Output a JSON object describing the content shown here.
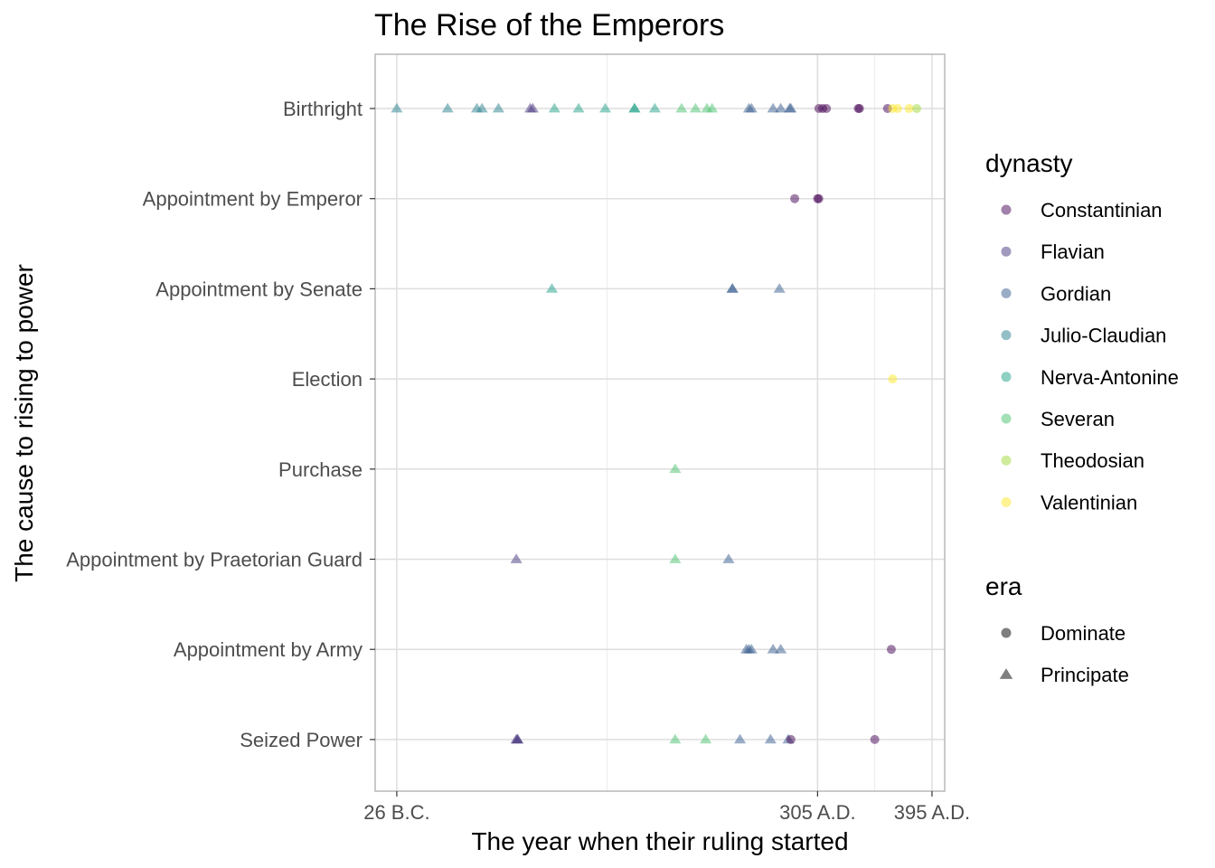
{
  "chart_data": {
    "type": "scatter",
    "title": "The Rise of the Emperors",
    "xlabel": "The year when their ruling started",
    "ylabel": "The cause to rising to power",
    "xlim": [
      -43,
      405
    ],
    "x_ticks": [
      {
        "value": -26,
        "label": "26 B.C."
      },
      {
        "value": 305,
        "label": "305 A.D."
      },
      {
        "value": 395,
        "label": "395 A.D."
      }
    ],
    "categories": [
      "Birthright",
      "Appointment by Emperor",
      "Appointment by Senate",
      "Election",
      "Purchase",
      "Appointment by Praetorian Guard",
      "Appointment by Army",
      "Seized Power"
    ],
    "colors": {
      "Constantinian": "#440154",
      "Flavian": "#46337E",
      "Gordian": "#365C8D",
      "Julio-Claudian": "#277F8E",
      "Nerva-Antonine": "#1FA187",
      "Severan": "#4AC16D",
      "Theodosian": "#9FDA3A",
      "Valentinian": "#FDE725"
    },
    "legend_dynasty": {
      "title": "dynasty",
      "items": [
        "Constantinian",
        "Flavian",
        "Gordian",
        "Julio-Claudian",
        "Nerva-Antonine",
        "Severan",
        "Theodosian",
        "Valentinian"
      ]
    },
    "legend_era": {
      "title": "era",
      "items": [
        {
          "label": "Dominate",
          "shape": "circle"
        },
        {
          "label": "Principate",
          "shape": "triangle"
        }
      ]
    },
    "points": [
      {
        "x": -26,
        "cause": "Birthright",
        "dynasty": "Julio-Claudian",
        "era": "Principate"
      },
      {
        "x": 14,
        "cause": "Birthright",
        "dynasty": "Julio-Claudian",
        "era": "Principate"
      },
      {
        "x": 37,
        "cause": "Birthright",
        "dynasty": "Julio-Claudian",
        "era": "Principate"
      },
      {
        "x": 41,
        "cause": "Birthright",
        "dynasty": "Julio-Claudian",
        "era": "Principate"
      },
      {
        "x": 54,
        "cause": "Birthright",
        "dynasty": "Julio-Claudian",
        "era": "Principate"
      },
      {
        "x": 79,
        "cause": "Birthright",
        "dynasty": "Flavian",
        "era": "Principate"
      },
      {
        "x": 81,
        "cause": "Birthright",
        "dynasty": "Flavian",
        "era": "Principate"
      },
      {
        "x": 98,
        "cause": "Birthright",
        "dynasty": "Nerva-Antonine",
        "era": "Principate"
      },
      {
        "x": 117,
        "cause": "Birthright",
        "dynasty": "Nerva-Antonine",
        "era": "Principate"
      },
      {
        "x": 138,
        "cause": "Birthright",
        "dynasty": "Nerva-Antonine",
        "era": "Principate"
      },
      {
        "x": 161,
        "cause": "Birthright",
        "dynasty": "Nerva-Antonine",
        "era": "Principate"
      },
      {
        "x": 161,
        "cause": "Birthright",
        "dynasty": "Nerva-Antonine",
        "era": "Principate"
      },
      {
        "x": 177,
        "cause": "Birthright",
        "dynasty": "Nerva-Antonine",
        "era": "Principate"
      },
      {
        "x": 198,
        "cause": "Birthright",
        "dynasty": "Severan",
        "era": "Principate"
      },
      {
        "x": 209,
        "cause": "Birthright",
        "dynasty": "Severan",
        "era": "Principate"
      },
      {
        "x": 218,
        "cause": "Birthright",
        "dynasty": "Severan",
        "era": "Principate"
      },
      {
        "x": 222,
        "cause": "Birthright",
        "dynasty": "Severan",
        "era": "Principate"
      },
      {
        "x": 251,
        "cause": "Birthright",
        "dynasty": "Gordian",
        "era": "Principate"
      },
      {
        "x": 253,
        "cause": "Birthright",
        "dynasty": "Gordian",
        "era": "Principate"
      },
      {
        "x": 270,
        "cause": "Birthright",
        "dynasty": "Gordian",
        "era": "Principate"
      },
      {
        "x": 276,
        "cause": "Birthright",
        "dynasty": "Gordian",
        "era": "Principate"
      },
      {
        "x": 283,
        "cause": "Birthright",
        "dynasty": "Gordian",
        "era": "Principate"
      },
      {
        "x": 284,
        "cause": "Birthright",
        "dynasty": "Gordian",
        "era": "Principate"
      },
      {
        "x": 306,
        "cause": "Birthright",
        "dynasty": "Constantinian",
        "era": "Dominate"
      },
      {
        "x": 309,
        "cause": "Birthright",
        "dynasty": "Constantinian",
        "era": "Dominate"
      },
      {
        "x": 312,
        "cause": "Birthright",
        "dynasty": "Constantinian",
        "era": "Dominate"
      },
      {
        "x": 337,
        "cause": "Birthright",
        "dynasty": "Constantinian",
        "era": "Dominate"
      },
      {
        "x": 338,
        "cause": "Birthright",
        "dynasty": "Constantinian",
        "era": "Dominate"
      },
      {
        "x": 360,
        "cause": "Birthright",
        "dynasty": "Constantinian",
        "era": "Dominate"
      },
      {
        "x": 364,
        "cause": "Birthright",
        "dynasty": "Valentinian",
        "era": "Dominate"
      },
      {
        "x": 368,
        "cause": "Birthright",
        "dynasty": "Valentinian",
        "era": "Dominate"
      },
      {
        "x": 377,
        "cause": "Birthright",
        "dynasty": "Valentinian",
        "era": "Dominate"
      },
      {
        "x": 383,
        "cause": "Birthright",
        "dynasty": "Theodosian",
        "era": "Dominate"
      },
      {
        "x": 287,
        "cause": "Appointment by Emperor",
        "dynasty": "Constantinian",
        "era": "Dominate"
      },
      {
        "x": 305,
        "cause": "Appointment by Emperor",
        "dynasty": "Constantinian",
        "era": "Dominate"
      },
      {
        "x": 306,
        "cause": "Appointment by Emperor",
        "dynasty": "Constantinian",
        "era": "Dominate"
      },
      {
        "x": 96,
        "cause": "Appointment by Senate",
        "dynasty": "Nerva-Antonine",
        "era": "Principate"
      },
      {
        "x": 238,
        "cause": "Appointment by Senate",
        "dynasty": "Gordian",
        "era": "Principate"
      },
      {
        "x": 238,
        "cause": "Appointment by Senate",
        "dynasty": "Gordian",
        "era": "Principate"
      },
      {
        "x": 275,
        "cause": "Appointment by Senate",
        "dynasty": "Gordian",
        "era": "Principate"
      },
      {
        "x": 364,
        "cause": "Election",
        "dynasty": "Valentinian",
        "era": "Dominate"
      },
      {
        "x": 193,
        "cause": "Purchase",
        "dynasty": "Severan",
        "era": "Principate"
      },
      {
        "x": 68,
        "cause": "Appointment by Praetorian Guard",
        "dynasty": "Flavian",
        "era": "Principate"
      },
      {
        "x": 193,
        "cause": "Appointment by Praetorian Guard",
        "dynasty": "Severan",
        "era": "Principate"
      },
      {
        "x": 235,
        "cause": "Appointment by Praetorian Guard",
        "dynasty": "Gordian",
        "era": "Principate"
      },
      {
        "x": 249,
        "cause": "Appointment by Army",
        "dynasty": "Gordian",
        "era": "Principate"
      },
      {
        "x": 251,
        "cause": "Appointment by Army",
        "dynasty": "Gordian",
        "era": "Principate"
      },
      {
        "x": 253,
        "cause": "Appointment by Army",
        "dynasty": "Gordian",
        "era": "Principate"
      },
      {
        "x": 270,
        "cause": "Appointment by Army",
        "dynasty": "Gordian",
        "era": "Principate"
      },
      {
        "x": 276,
        "cause": "Appointment by Army",
        "dynasty": "Gordian",
        "era": "Principate"
      },
      {
        "x": 363,
        "cause": "Appointment by Army",
        "dynasty": "Constantinian",
        "era": "Dominate"
      },
      {
        "x": 68,
        "cause": "Seized Power",
        "dynasty": "Flavian",
        "era": "Principate"
      },
      {
        "x": 69,
        "cause": "Seized Power",
        "dynasty": "Flavian",
        "era": "Principate"
      },
      {
        "x": 69,
        "cause": "Seized Power",
        "dynasty": "Flavian",
        "era": "Principate"
      },
      {
        "x": 193,
        "cause": "Seized Power",
        "dynasty": "Severan",
        "era": "Principate"
      },
      {
        "x": 217,
        "cause": "Seized Power",
        "dynasty": "Severan",
        "era": "Principate"
      },
      {
        "x": 244,
        "cause": "Seized Power",
        "dynasty": "Gordian",
        "era": "Principate"
      },
      {
        "x": 268,
        "cause": "Seized Power",
        "dynasty": "Gordian",
        "era": "Principate"
      },
      {
        "x": 282,
        "cause": "Seized Power",
        "dynasty": "Gordian",
        "era": "Principate"
      },
      {
        "x": 284,
        "cause": "Seized Power",
        "dynasty": "Constantinian",
        "era": "Dominate"
      },
      {
        "x": 350,
        "cause": "Seized Power",
        "dynasty": "Constantinian",
        "era": "Dominate"
      }
    ]
  }
}
